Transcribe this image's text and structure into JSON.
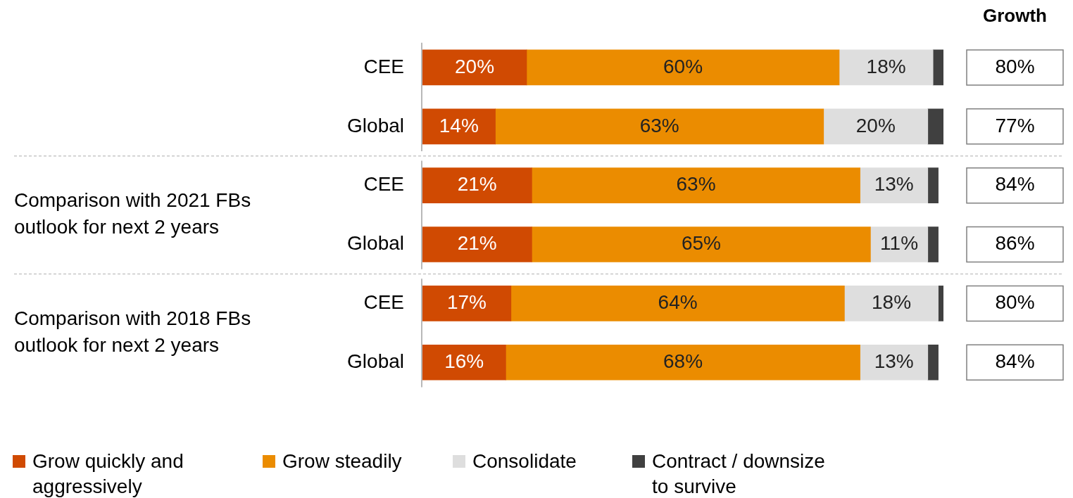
{
  "chart_data": {
    "type": "bar",
    "orientation": "horizontal",
    "stacked": true,
    "categories": [
      "CEE",
      "Global",
      "CEE",
      "Global",
      "CEE",
      "Global"
    ],
    "series": [
      {
        "name": "Grow quickly and aggressively",
        "color": "#d04a02",
        "values": [
          20,
          14,
          21,
          21,
          17,
          16
        ],
        "value_labels": [
          "20%",
          "14%",
          "21%",
          "21%",
          "17%",
          "16%"
        ]
      },
      {
        "name": "Grow steadily",
        "color": "#eb8c00",
        "values": [
          60,
          63,
          63,
          65,
          64,
          68
        ],
        "value_labels": [
          "60%",
          "63%",
          "63%",
          "65%",
          "64%",
          "68%"
        ]
      },
      {
        "name": "Consolidate",
        "color": "#dedede",
        "values": [
          18,
          20,
          13,
          11,
          18,
          13
        ],
        "value_labels": [
          "18%",
          "20%",
          "13%",
          "11%",
          "18%",
          "13%"
        ]
      },
      {
        "name": "Contract / downsize to survive",
        "color": "#404040",
        "values": [
          2,
          3,
          2,
          2,
          1,
          2
        ]
      }
    ],
    "xlim": [
      0,
      100
    ],
    "tick_labels": "y",
    "grid": false,
    "legend": "bottom left",
    "annotations": [
      "Growth",
      "Comparison with 2021 FBs outlook for next 2 years",
      "Comparison with 2018 FBs outlook for next 2 years",
      "80%",
      "77%",
      "84%",
      "86%",
      "80%",
      "84%"
    ]
  }
}
